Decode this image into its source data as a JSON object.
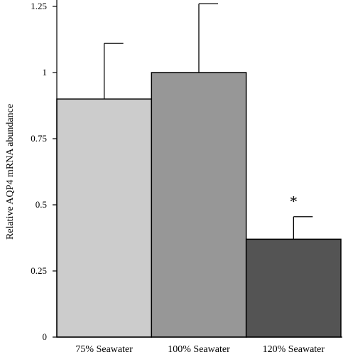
{
  "chart_data": {
    "type": "bar",
    "categories": [
      "75% Seawater",
      "100% Seawater",
      "120% Seawater"
    ],
    "values": [
      0.9,
      1.0,
      0.37
    ],
    "error_upper": [
      1.11,
      1.26,
      0.455
    ],
    "significance": [
      "",
      "",
      "*"
    ],
    "bar_colors": [
      "#cccccc",
      "#979797",
      "#545454"
    ],
    "ylabel": "Relative AQP4 mRNA abundance",
    "xlabel": "",
    "ylim": [
      0,
      1.25
    ],
    "yticks": [
      0,
      0.25,
      0.5,
      0.75,
      1,
      1.25
    ],
    "ytick_labels": [
      "0",
      "0.25",
      "0.5",
      "0.75",
      "1",
      "1.25"
    ],
    "grid": false,
    "legend": "none"
  }
}
